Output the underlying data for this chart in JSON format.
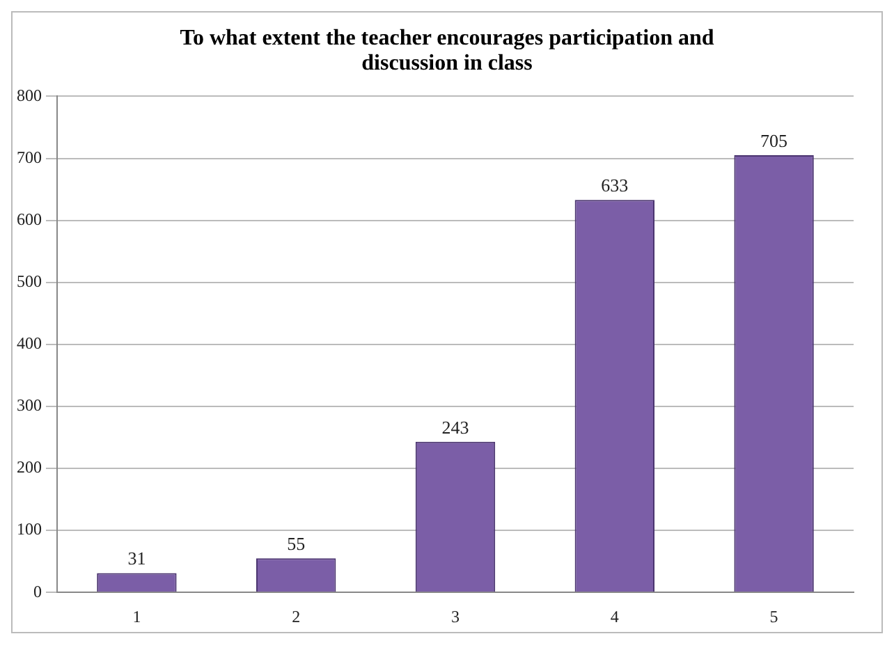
{
  "chart_data": {
    "type": "bar",
    "title": "To what extent the teacher encourages participation and discussion in class",
    "categories": [
      "1",
      "2",
      "3",
      "4",
      "5"
    ],
    "values": [
      31,
      55,
      243,
      633,
      705
    ],
    "color": "#7b5ea7",
    "ylim": [
      0,
      800
    ],
    "yticks": [
      0,
      100,
      200,
      300,
      400,
      500,
      600,
      700,
      800
    ],
    "grid": "y",
    "data_labels": true
  }
}
